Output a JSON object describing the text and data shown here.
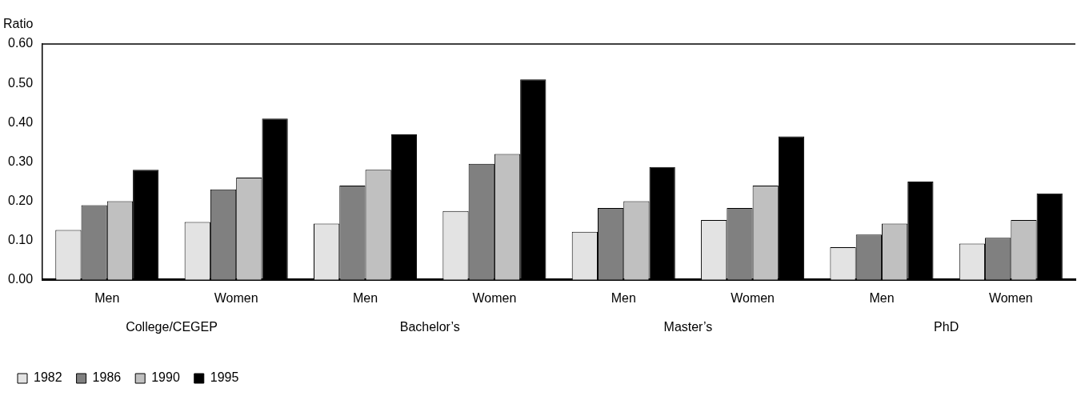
{
  "chart_data": {
    "type": "bar",
    "ylabel": "Ratio",
    "categories": [
      "Men",
      "Women",
      "Men",
      "Women",
      "Men",
      "Women",
      "Men",
      "Women"
    ],
    "annotations": [
      "College/CEGEP",
      "Bachelor’s",
      "Master’s",
      "PhD"
    ],
    "series": [
      {
        "name": "1982",
        "color": "#e3e3e3",
        "values": [
          0.127,
          0.147,
          0.143,
          0.175,
          0.122,
          0.152,
          0.083,
          0.092
        ]
      },
      {
        "name": "1986",
        "color": "#808080",
        "values": [
          0.19,
          0.23,
          0.24,
          0.295,
          0.183,
          0.183,
          0.115,
          0.107
        ]
      },
      {
        "name": "1990",
        "color": "#c0c0c0",
        "values": [
          0.2,
          0.26,
          0.28,
          0.32,
          0.2,
          0.24,
          0.143,
          0.152
        ]
      },
      {
        "name": "1995",
        "color": "#000000",
        "values": [
          0.28,
          0.41,
          0.37,
          0.51,
          0.287,
          0.365,
          0.25,
          0.22
        ]
      }
    ],
    "ylim": [
      0,
      0.6
    ],
    "yticks": [
      {
        "value": 0,
        "label": "0.00"
      },
      {
        "value": 0.1,
        "label": "0.10"
      },
      {
        "value": 0.2,
        "label": "0.20"
      },
      {
        "value": 0.3,
        "label": "0.30"
      },
      {
        "value": 0.4,
        "label": "0.40"
      },
      {
        "value": 0.5,
        "label": "0.50"
      },
      {
        "value": 0.6,
        "label": "0.60"
      }
    ],
    "grid": false,
    "legend": "bottom left"
  }
}
